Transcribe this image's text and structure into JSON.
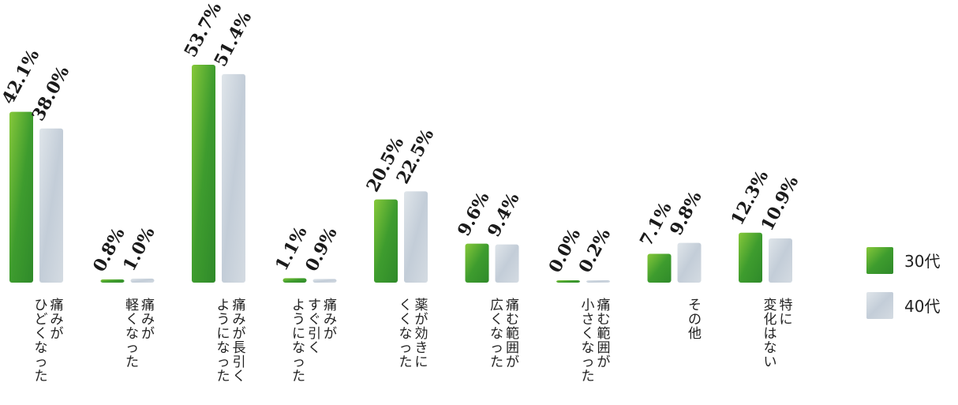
{
  "chart_data": {
    "type": "bar",
    "categories": [
      [
        "痛みが",
        "ひどくなった"
      ],
      [
        "痛みが",
        "軽くなった"
      ],
      [
        "痛みが長引く",
        "ようになった"
      ],
      [
        "痛みが",
        "すぐ引く",
        "ようになった"
      ],
      [
        "薬が効きに",
        "くくなった"
      ],
      [
        "痛む範囲が",
        "広くなった"
      ],
      [
        "痛む範囲が",
        "小さくなった"
      ],
      [
        "その他"
      ],
      [
        "特に",
        "変化はない"
      ]
    ],
    "series": [
      {
        "name": "30代",
        "color": "#3c9a2c",
        "values": [
          42.1,
          0.8,
          53.7,
          1.1,
          20.5,
          9.6,
          0.0,
          7.1,
          12.3
        ],
        "labels": [
          "42.1%",
          "0.8%",
          "53.7%",
          "1.1%",
          "20.5%",
          "9.6%",
          "0.0%",
          "7.1%",
          "12.3%"
        ]
      },
      {
        "name": "40代",
        "color": "#c6d0da",
        "values": [
          38.0,
          1.0,
          51.4,
          0.9,
          22.5,
          9.4,
          0.2,
          9.8,
          10.9
        ],
        "labels": [
          "38.0%",
          "1.0%",
          "51.4%",
          "0.9%",
          "22.5%",
          "9.4%",
          "0.2%",
          "9.8%",
          "10.9%"
        ]
      }
    ],
    "unit": "%",
    "ylim": [
      0,
      55
    ],
    "legend_position": "right"
  }
}
